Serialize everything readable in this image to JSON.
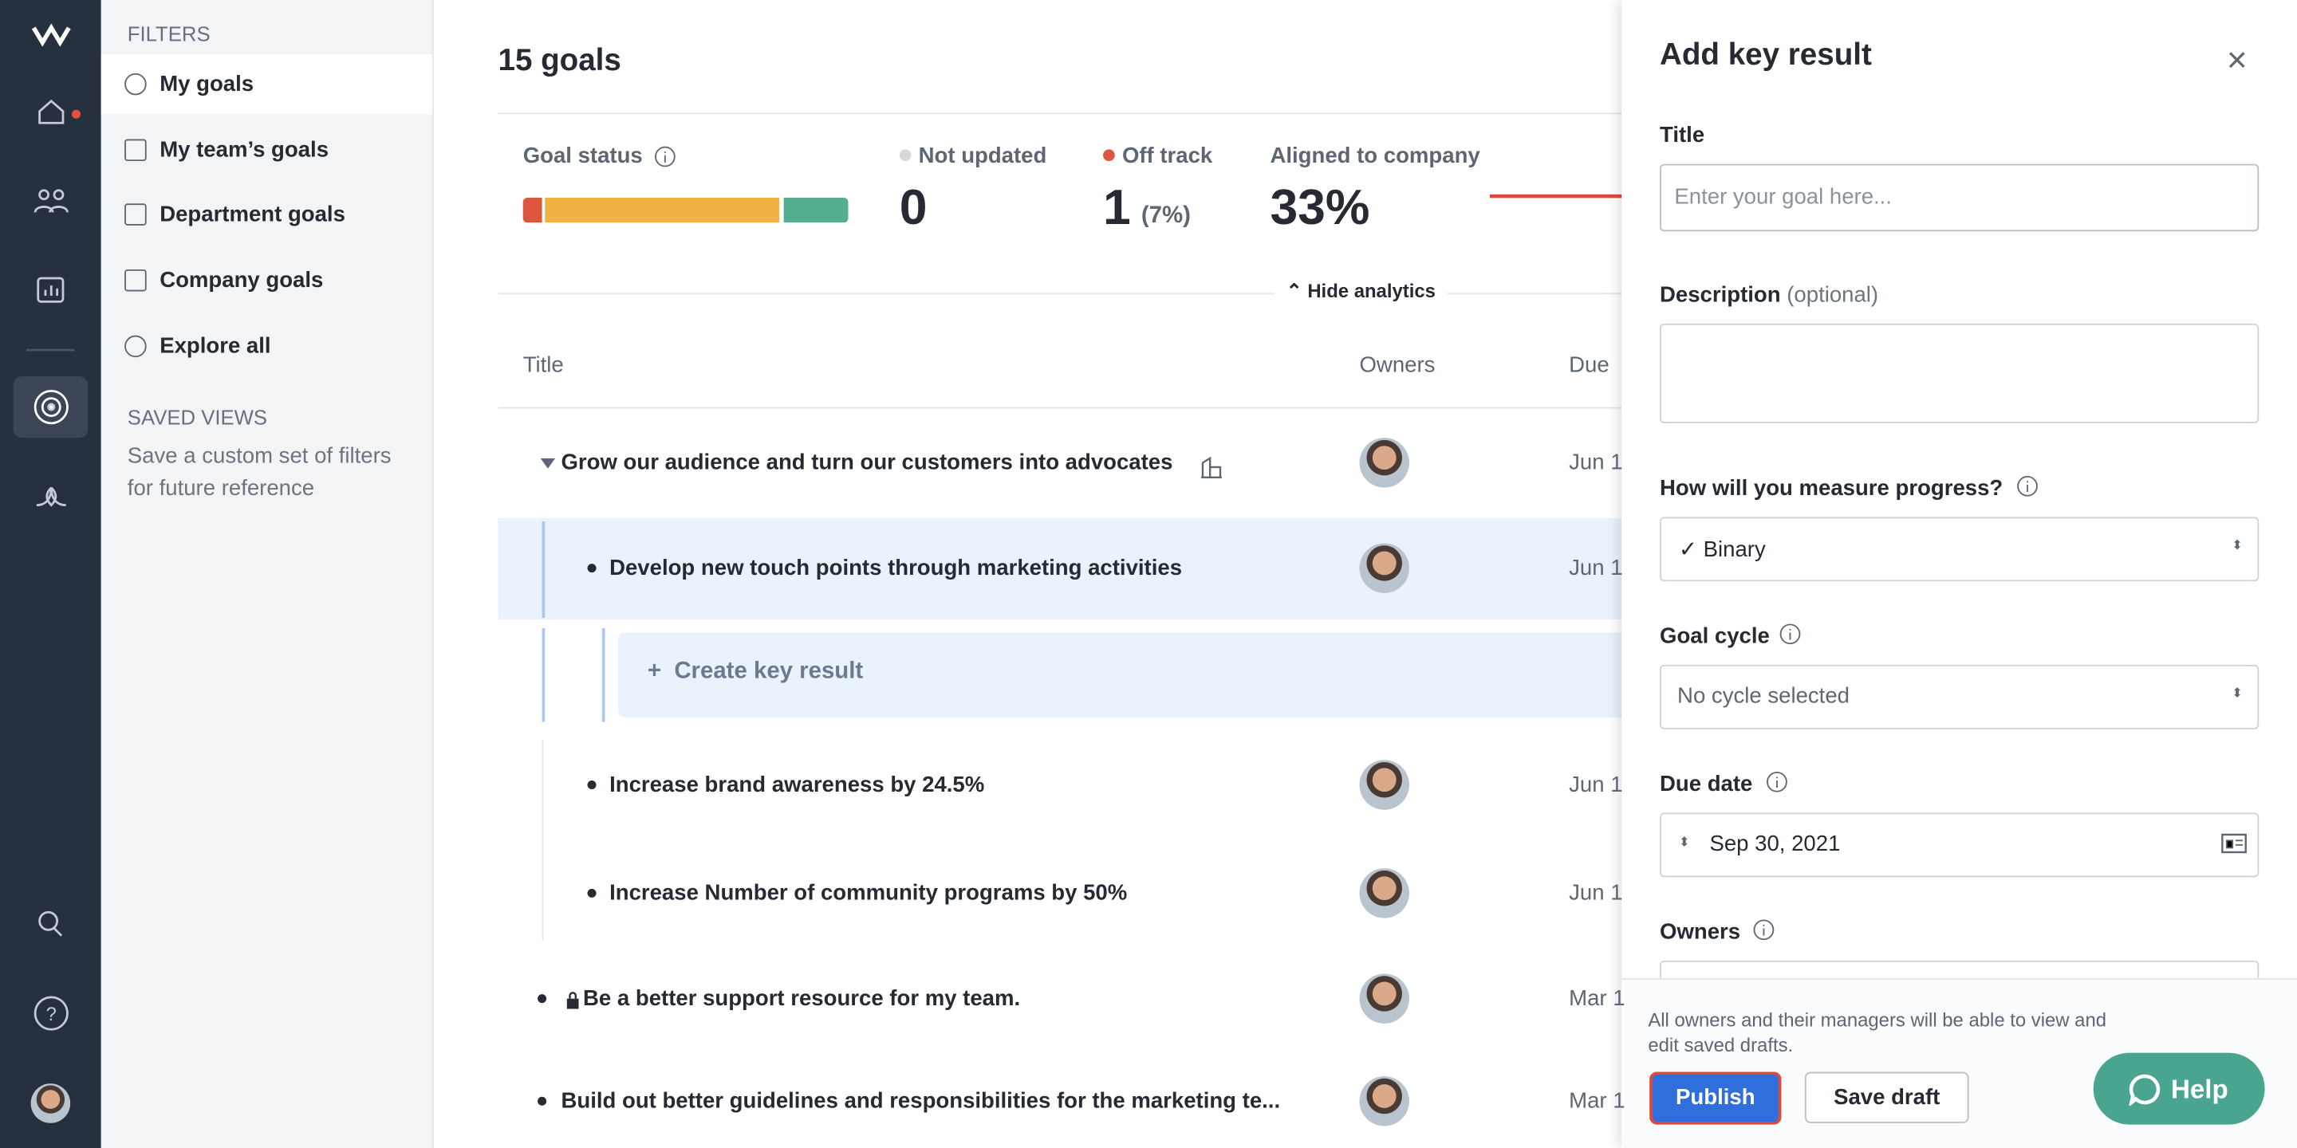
{
  "filters": {
    "heading": "FILTERS",
    "items": [
      "My goals",
      "My team’s goals",
      "Department goals",
      "Company goals",
      "Explore all"
    ]
  },
  "saved_views": {
    "heading": "SAVED VIEWS",
    "text": "Save a custom set of filters for future reference"
  },
  "goals": {
    "count": "15 goals",
    "analytics": {
      "goal_status": "Goal status",
      "not_updated": {
        "label": "Not updated",
        "value": "0"
      },
      "off_track": {
        "label": "Off track",
        "value": "1",
        "percent": "(7%)"
      },
      "aligned": {
        "label": "Aligned to company",
        "value": "33%"
      },
      "toggle": "Hide analytics"
    },
    "columns": [
      "Title",
      "Owners",
      "Due"
    ],
    "rows": [
      {
        "title": "Grow our audience and turn our customers into advocates",
        "due": "Jun 1"
      },
      {
        "title": "Develop new touch points through marketing activities",
        "due": "Jun 1"
      },
      {
        "title": "Increase brand awareness by 24.5%",
        "due": "Jun 1"
      },
      {
        "title": "Increase Number of community programs by 50%",
        "due": "Jun 1"
      },
      {
        "title": "Be a better support resource for my team.",
        "due": "Mar 1"
      },
      {
        "title": "Build out better guidelines and responsibilities for the marketing te...",
        "due": "Mar 1"
      }
    ],
    "create": "Create key result"
  },
  "panel": {
    "title": "Add key result",
    "title_label": "Title",
    "title_placeholder": "Enter your goal here...",
    "description_label": "Description",
    "optional": "(optional)",
    "measure_label": "How will you measure progress?",
    "measure_value": "Binary",
    "cycle_label": "Goal cycle",
    "cycle_value": "No cycle selected",
    "due_label": "Due date",
    "due_value": "Sep 30, 2021",
    "owners_label": "Owners",
    "note": "All owners and their managers will be able to view and edit saved drafts.",
    "publish": "Publish",
    "save_draft": "Save draft"
  },
  "help": "Help"
}
